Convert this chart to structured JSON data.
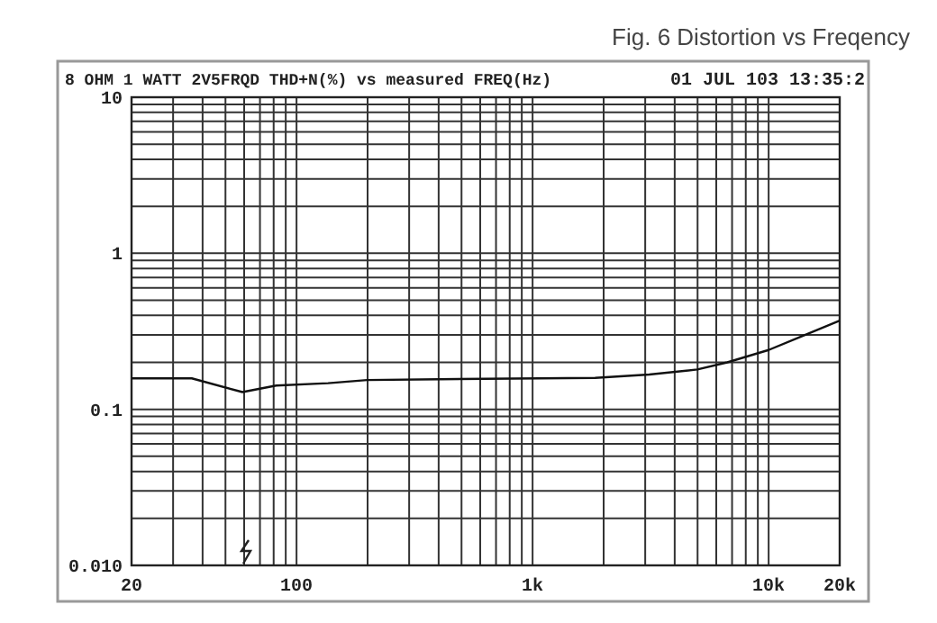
{
  "chart_data": {
    "type": "line",
    "title": "Fig. 6 Distortion vs Freqency",
    "subtitle": "8 OHM 1 WATT 2V5FRQD THD+N(%) vs measured FREQ(Hz)",
    "annotations": [
      "01 JUL 103 13:35:2"
    ],
    "log": "xy",
    "grid": true,
    "marker": "none",
    "line_style": "solid",
    "xlim": [
      20,
      20000
    ],
    "ylim": [
      0.01,
      10
    ],
    "xticks": [
      20,
      {
        "value": 30,
        "label": null
      },
      {
        "value": 40,
        "label": null
      },
      {
        "value": 50,
        "label": null
      },
      {
        "value": 60,
        "label": null
      },
      {
        "value": 70,
        "label": null
      },
      {
        "value": 80,
        "label": null
      },
      {
        "value": 90,
        "label": null
      },
      100,
      {
        "value": 200,
        "label": null
      },
      {
        "value": 300,
        "label": null
      },
      {
        "value": 400,
        "label": null
      },
      {
        "value": 500,
        "label": null
      },
      {
        "value": 600,
        "label": null
      },
      {
        "value": 700,
        "label": null
      },
      {
        "value": 800,
        "label": null
      },
      {
        "value": 900,
        "label": null
      },
      {
        "value": 1000,
        "label": "1k"
      },
      {
        "value": 2000,
        "label": null
      },
      {
        "value": 3000,
        "label": null
      },
      {
        "value": 4000,
        "label": null
      },
      {
        "value": 5000,
        "label": null
      },
      {
        "value": 6000,
        "label": null
      },
      {
        "value": 7000,
        "label": null
      },
      {
        "value": 8000,
        "label": null
      },
      {
        "value": 9000,
        "label": null
      },
      {
        "value": 10000,
        "label": "10k"
      },
      {
        "value": 20000,
        "label": "20k"
      }
    ],
    "yticks": [
      {
        "value": 0.01,
        "label": "0.010"
      },
      {
        "value": 0.02,
        "label": null
      },
      {
        "value": 0.03,
        "label": null
      },
      {
        "value": 0.04,
        "label": null
      },
      {
        "value": 0.05,
        "label": null
      },
      {
        "value": 0.06,
        "label": null
      },
      {
        "value": 0.07,
        "label": null
      },
      {
        "value": 0.08,
        "label": null
      },
      {
        "value": 0.09,
        "label": null
      },
      0.1,
      {
        "value": 0.2,
        "label": null
      },
      {
        "value": 0.3,
        "label": null
      },
      {
        "value": 0.4,
        "label": null
      },
      {
        "value": 0.5,
        "label": null
      },
      {
        "value": 0.6,
        "label": null
      },
      {
        "value": 0.7,
        "label": null
      },
      {
        "value": 0.8,
        "label": null
      },
      {
        "value": 0.9,
        "label": null
      },
      1,
      {
        "value": 2,
        "label": null
      },
      {
        "value": 3,
        "label": null
      },
      {
        "value": 4,
        "label": null
      },
      {
        "value": 5,
        "label": null
      },
      {
        "value": 6,
        "label": null
      },
      {
        "value": 7,
        "label": null
      },
      {
        "value": 8,
        "label": null
      },
      {
        "value": 9,
        "label": null
      },
      10
    ],
    "series": [
      {
        "color": "#111111",
        "x": [
          20,
          36,
          59,
          82,
          136,
          199,
          402,
          1840,
          3120,
          4990,
          6680,
          10000,
          13500,
          20000
        ],
        "values": [
          0.158,
          0.158,
          0.129,
          0.142,
          0.147,
          0.154,
          0.156,
          0.159,
          0.167,
          0.18,
          0.2,
          0.24,
          0.29,
          0.37
        ]
      }
    ]
  }
}
